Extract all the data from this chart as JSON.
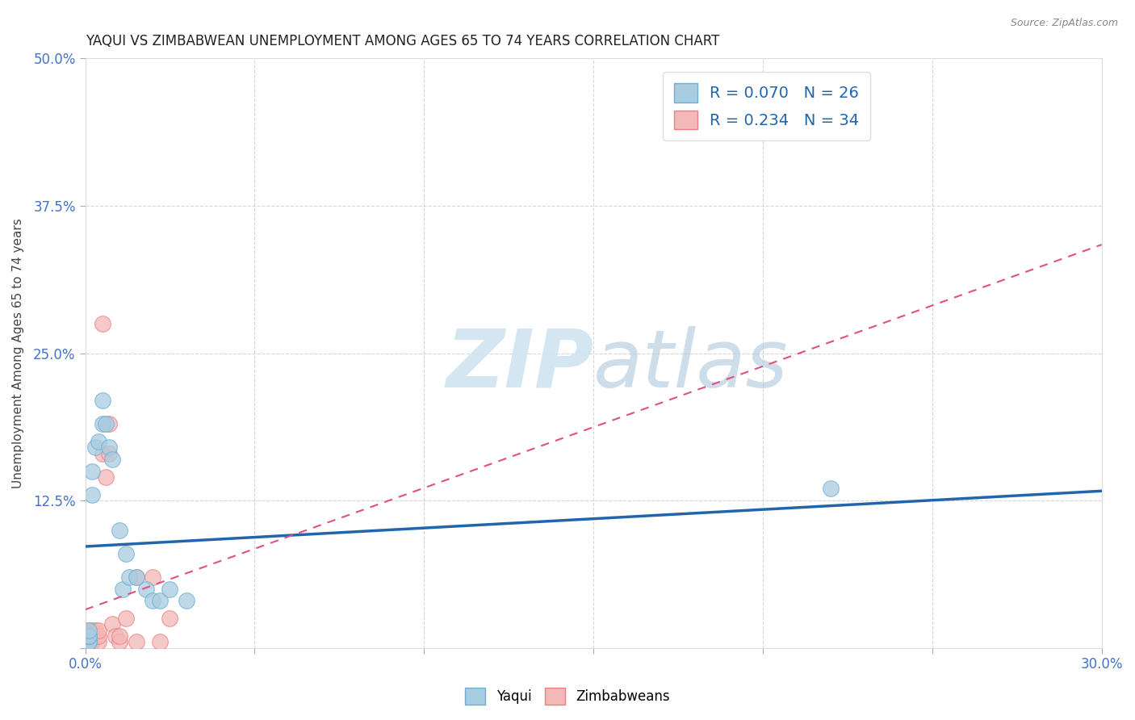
{
  "title": "YAQUI VS ZIMBABWEAN UNEMPLOYMENT AMONG AGES 65 TO 74 YEARS CORRELATION CHART",
  "source": "Source: ZipAtlas.com",
  "ylabel": "Unemployment Among Ages 65 to 74 years",
  "xlabel": "",
  "xlim": [
    0.0,
    0.3
  ],
  "ylim": [
    0.0,
    0.5
  ],
  "xticks": [
    0.0,
    0.05,
    0.1,
    0.15,
    0.2,
    0.25,
    0.3
  ],
  "xticklabels": [
    "0.0%",
    "",
    "",
    "",
    "",
    "",
    "30.0%"
  ],
  "yticks": [
    0.0,
    0.125,
    0.25,
    0.375,
    0.5
  ],
  "yticklabels": [
    "",
    "12.5%",
    "25.0%",
    "37.5%",
    "50.0%"
  ],
  "yaqui_R": 0.07,
  "yaqui_N": 26,
  "zimbabwean_R": 0.234,
  "zimbabwean_N": 34,
  "yaqui_color": "#a8cce0",
  "yaqui_edge_color": "#6baed6",
  "zimbabwean_color": "#f4b8b8",
  "zimbabwean_edge_color": "#e88080",
  "trend_yaqui_color": "#2166ac",
  "trend_zimbabwean_color": "#e05080",
  "watermark_color": "#d0e4f0",
  "background_color": "#ffffff",
  "yaqui_x": [
    0.001,
    0.001,
    0.001,
    0.001,
    0.001,
    0.001,
    0.002,
    0.002,
    0.003,
    0.004,
    0.005,
    0.005,
    0.006,
    0.007,
    0.008,
    0.01,
    0.011,
    0.012,
    0.013,
    0.015,
    0.018,
    0.02,
    0.022,
    0.025,
    0.03,
    0.22
  ],
  "yaqui_y": [
    0.005,
    0.005,
    0.01,
    0.01,
    0.01,
    0.015,
    0.13,
    0.15,
    0.17,
    0.175,
    0.21,
    0.19,
    0.19,
    0.17,
    0.16,
    0.1,
    0.05,
    0.08,
    0.06,
    0.06,
    0.05,
    0.04,
    0.04,
    0.05,
    0.04,
    0.135
  ],
  "zimbabwean_x": [
    0.0,
    0.0,
    0.0,
    0.0,
    0.0,
    0.0,
    0.001,
    0.001,
    0.001,
    0.001,
    0.001,
    0.002,
    0.002,
    0.002,
    0.003,
    0.003,
    0.004,
    0.004,
    0.004,
    0.005,
    0.005,
    0.006,
    0.007,
    0.007,
    0.008,
    0.009,
    0.01,
    0.01,
    0.012,
    0.015,
    0.015,
    0.02,
    0.022,
    0.025
  ],
  "zimbabwean_y": [
    0.0,
    0.0,
    0.005,
    0.005,
    0.01,
    0.01,
    0.0,
    0.005,
    0.005,
    0.01,
    0.015,
    0.005,
    0.01,
    0.015,
    0.01,
    0.015,
    0.005,
    0.01,
    0.015,
    0.165,
    0.275,
    0.145,
    0.165,
    0.19,
    0.02,
    0.01,
    0.005,
    0.01,
    0.025,
    0.005,
    0.06,
    0.06,
    0.005,
    0.025
  ],
  "marker_size": 200
}
